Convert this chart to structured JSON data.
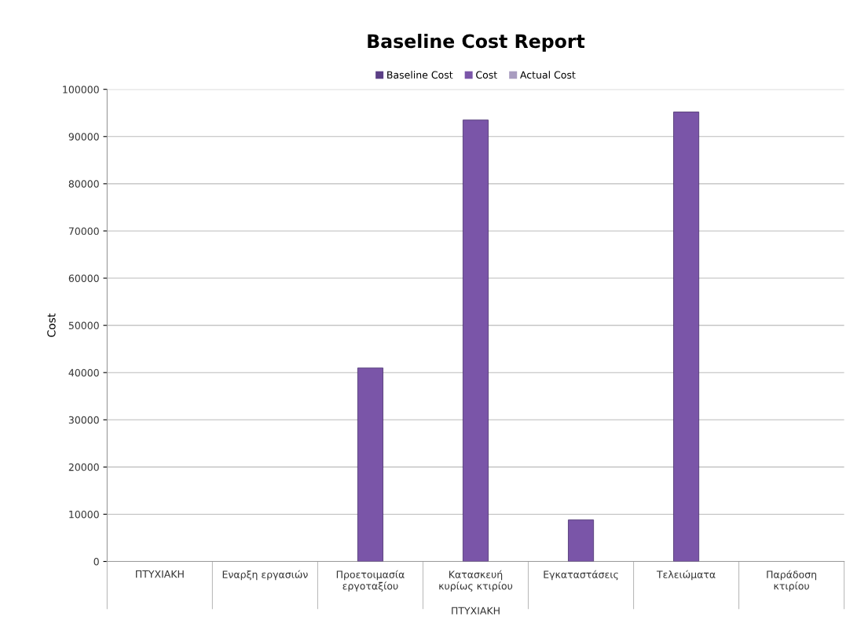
{
  "chart_data": {
    "type": "bar",
    "title": "Baseline Cost Report",
    "ylabel": "Cost",
    "xlabel": "ΠΤΥΧΙΑΚΗ",
    "categories": [
      "ΠΤΥΧΙΑΚΗ",
      "Εναρξη εργασιών",
      "Προετοιμασία\nεργοταξίου",
      "Κατασκευή\nκυρίως κτιρίου",
      "Εγκαταστάσεις",
      "Τελειώματα",
      "Παράδοση\nκτιρίου"
    ],
    "series": [
      {
        "name": "Baseline Cost",
        "color": "#5b3f86",
        "values": [
          null,
          null,
          null,
          null,
          null,
          null,
          null
        ]
      },
      {
        "name": "Cost",
        "color": "#7a55a8",
        "values": [
          null,
          null,
          41000,
          93500,
          8800,
          95200,
          null
        ]
      },
      {
        "name": "Actual Cost",
        "color": "#a89cc0",
        "values": [
          null,
          null,
          null,
          null,
          null,
          null,
          null
        ]
      }
    ],
    "ylim": [
      0,
      100000
    ],
    "yticks": [
      0,
      10000,
      20000,
      30000,
      40000,
      50000,
      60000,
      70000,
      80000,
      90000,
      100000
    ],
    "grid": "y",
    "legend": "top"
  }
}
